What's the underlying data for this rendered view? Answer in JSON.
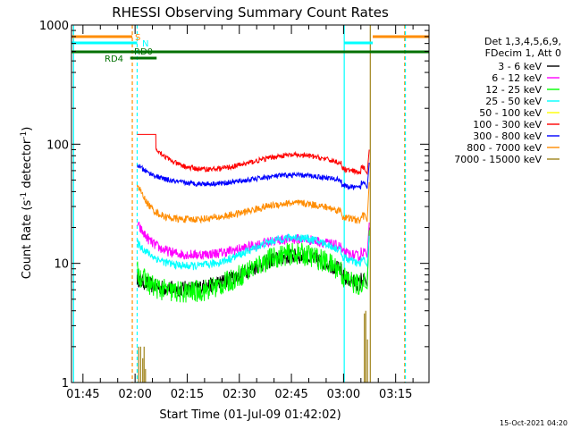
{
  "chart_data": {
    "type": "line",
    "title": "RHESSI Observing Summary Count Rates",
    "xlabel": "Start Time (01-Jul-09 01:42:02)",
    "ylabel_main": "Count Rate (s",
    "ylabel_sup": "-1",
    "ylabel_mid": " detector",
    "ylabel_sup2": "-1",
    "ylabel_end": ")",
    "y_scale": "log",
    "ylim": [
      1,
      1000
    ],
    "xlim_minutes": [
      1.7,
      104.6
    ],
    "x_ticks": [
      {
        "label": "01:45",
        "minutes": 45
      },
      {
        "label": "02:00",
        "minutes": 60
      },
      {
        "label": "02:15",
        "minutes": 75
      },
      {
        "label": "02:30",
        "minutes": 90
      },
      {
        "label": "02:45",
        "minutes": 105
      },
      {
        "label": "03:00",
        "minutes": 120
      },
      {
        "label": "03:15",
        "minutes": 135
      }
    ],
    "y_ticks": [
      {
        "label": "1",
        "value": 1
      },
      {
        "label": "10",
        "value": 10
      },
      {
        "label": "100",
        "value": 100
      },
      {
        "label": "1000",
        "value": 1000
      }
    ],
    "legend_header": [
      "Det 1,3,4,5,6,9,",
      "FDecim 1, Att 0"
    ],
    "legend_position": "right",
    "series": [
      {
        "name": "3 - 6 keV",
        "color": "#000000"
      },
      {
        "name": "6 - 12 keV",
        "color": "#ff00ff"
      },
      {
        "name": "12 - 25 keV",
        "color": "#00ff00"
      },
      {
        "name": "25 - 50 keV",
        "color": "#00ffff"
      },
      {
        "name": "50 - 100 keV",
        "color": "#ffff00"
      },
      {
        "name": "100 - 300 keV",
        "color": "#ff0000"
      },
      {
        "name": "300 - 800 keV",
        "color": "#0000ff"
      },
      {
        "name": "800 - 7000 keV",
        "color": "#ff8c00"
      },
      {
        "name": "7000 - 15000 keV",
        "color": "#a0841c"
      }
    ],
    "flag_labels": {
      "s": "S",
      "n": "N",
      "rd0": "RD0",
      "rd4": "RD4"
    },
    "footer_date": "15-Oct-2021 04:20"
  }
}
